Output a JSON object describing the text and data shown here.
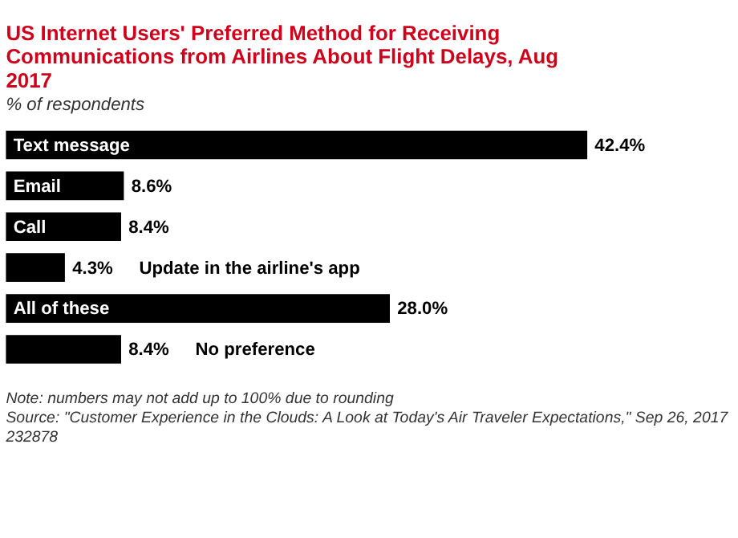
{
  "chart_data": {
    "type": "bar",
    "orientation": "horizontal",
    "title": "US Internet Users' Preferred Method for Receiving Communications from Airlines About Flight Delays, Aug 2017",
    "subtitle": "% of respondents",
    "categories": [
      "Text message",
      "Email",
      "Call",
      "Update in the airline's app",
      "All of these",
      "No preference"
    ],
    "values": [
      42.4,
      8.6,
      8.4,
      4.3,
      28.0,
      8.4
    ],
    "value_labels": [
      "42.4%",
      "8.6%",
      "8.4%",
      "4.3%",
      "28.0%",
      "8.4%"
    ],
    "color": "#000000",
    "annotations": [
      "Note: numbers may not add up to 100% due to rounding",
      "Source: \"Customer Experience in the Clouds: A Look at Today's Air Traveler Expectations,\" Sep 26, 2017",
      "232878"
    ]
  }
}
